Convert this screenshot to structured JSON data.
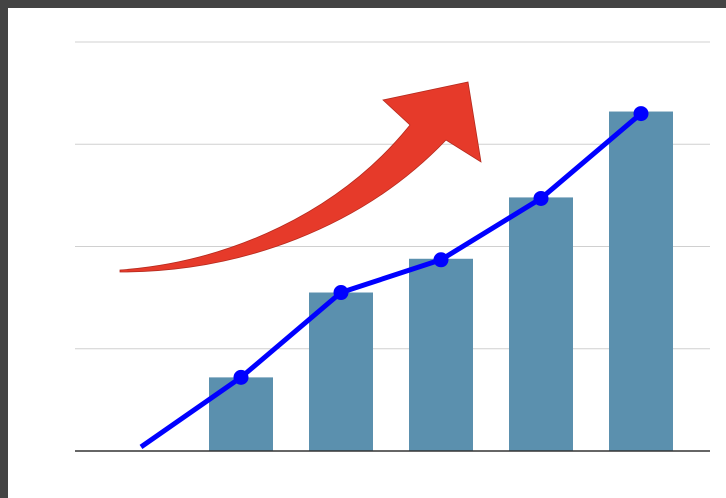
{
  "chart_data": {
    "type": "bar-line",
    "categories": [
      null,
      null,
      null,
      null,
      null,
      null
    ],
    "series": [
      {
        "type": "bar",
        "color": "#5b90ae",
        "values": [
          null,
          0.72,
          1.55,
          1.88,
          2.48,
          3.32
        ]
      },
      {
        "type": "line",
        "color": "#0000ff",
        "values": [
          0.04,
          0.72,
          1.55,
          1.87,
          2.47,
          3.3
        ],
        "markers": [
          false,
          true,
          true,
          true,
          true,
          true
        ]
      }
    ],
    "ylim": [
      0,
      4
    ],
    "yticks": [
      1,
      2,
      3,
      4
    ],
    "grid": true
  }
}
